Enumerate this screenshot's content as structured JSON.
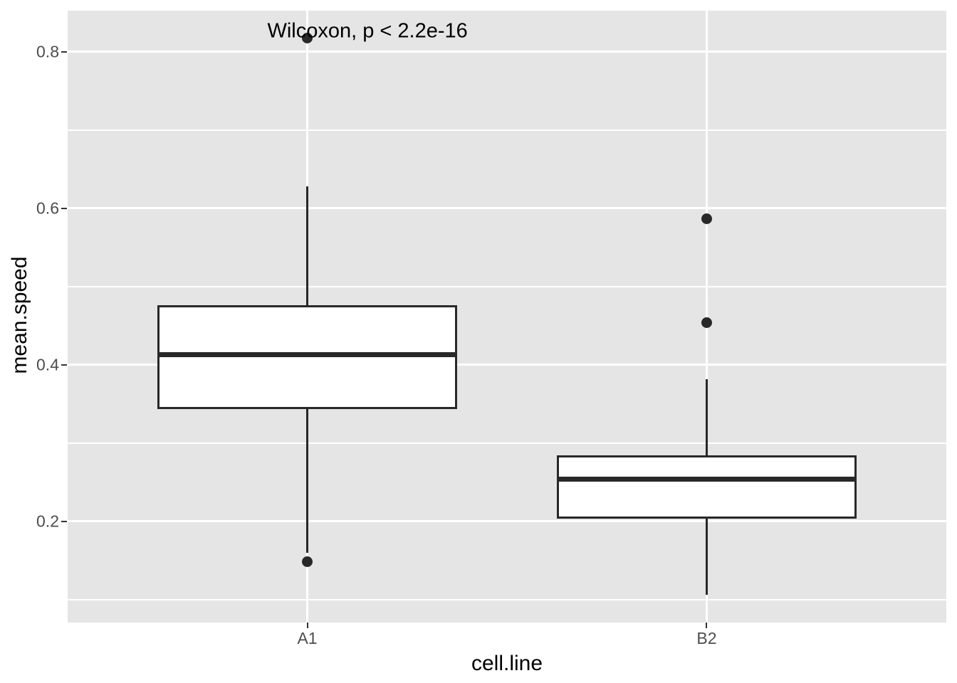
{
  "figure": {
    "background": "#FFFFFF",
    "panel_background": "#E5E5E5",
    "grid_color": "#FFFFFF",
    "box_fill": "#FFFFFF",
    "stroke_color": "#282828",
    "tick_color": "#333333",
    "axis_text_color": "#4D4D4D",
    "axis_title_color": "#000000"
  },
  "chart_data": {
    "type": "boxplot",
    "title": "",
    "annotation": "Wilcoxon, p < 2.2e-16",
    "annotation_pos": {
      "x": 0.9,
      "y": 0.8265
    },
    "xlabel": "cell.line",
    "ylabel": "mean.speed",
    "categories": [
      "A1",
      "B2"
    ],
    "x_positions": [
      1,
      2
    ],
    "xlim": [
      0.4,
      2.6
    ],
    "ylim": [
      0.0709,
      0.8527
    ],
    "y_major_ticks": [
      0.2,
      0.4,
      0.6,
      0.8
    ],
    "y_tick_labels": [
      "0.2",
      "0.4",
      "0.6",
      "0.8"
    ],
    "y_minor_ticks": [
      0.1,
      0.3,
      0.5,
      0.7
    ],
    "box_width": 0.75,
    "grid": true,
    "legend": "none",
    "series": [
      {
        "name": "A1",
        "x": 1,
        "whisker_low": 0.16,
        "q1": 0.345,
        "median": 0.413,
        "q3": 0.475,
        "whisker_high": 0.628,
        "outliers": [
          0.818,
          0.149
        ]
      },
      {
        "name": "B2",
        "x": 2,
        "whisker_low": 0.106,
        "q1": 0.205,
        "median": 0.254,
        "q3": 0.283,
        "whisker_high": 0.382,
        "outliers": [
          0.587,
          0.454
        ]
      }
    ]
  }
}
